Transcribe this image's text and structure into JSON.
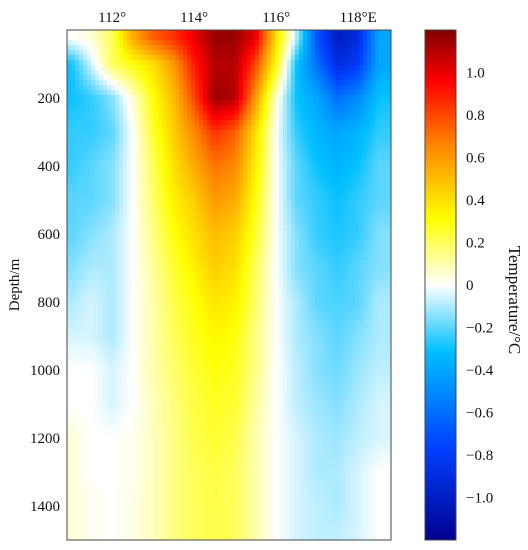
{
  "chart_data": {
    "type": "heatmap",
    "title": "",
    "xlabel": "",
    "ylabel": "Depth/m",
    "x_axis_position": "top",
    "x_ticks": [
      {
        "value": 112,
        "label": "112°"
      },
      {
        "value": 114,
        "label": "114°"
      },
      {
        "value": 116,
        "label": "116°"
      },
      {
        "value": 118,
        "label": "118°E"
      }
    ],
    "xlim": [
      110.9,
      118.8
    ],
    "y_ticks": [
      {
        "value": 200,
        "label": "200"
      },
      {
        "value": 400,
        "label": "400"
      },
      {
        "value": 600,
        "label": "600"
      },
      {
        "value": 800,
        "label": "800"
      },
      {
        "value": 1000,
        "label": "1000"
      },
      {
        "value": 1200,
        "label": "1200"
      },
      {
        "value": 1400,
        "label": "1400"
      }
    ],
    "ylim": [
      1500,
      0
    ],
    "y_inverted": true,
    "colorbar": {
      "label": "Temperature/°C",
      "range": [
        -1.2,
        1.2
      ],
      "ticks": [
        {
          "value": 1.0,
          "label": "1.0"
        },
        {
          "value": 0.8,
          "label": "0.8"
        },
        {
          "value": 0.6,
          "label": "0.6"
        },
        {
          "value": 0.4,
          "label": "0.4"
        },
        {
          "value": 0.2,
          "label": "0.2"
        },
        {
          "value": 0,
          "label": "0"
        },
        {
          "value": -0.2,
          "label": "−0.2"
        },
        {
          "value": -0.4,
          "label": "−0.4"
        },
        {
          "value": -0.6,
          "label": "−0.6"
        },
        {
          "value": -0.8,
          "label": "−0.8"
        },
        {
          "value": -1.0,
          "label": "−1.0"
        }
      ],
      "colors": [
        "#00008f",
        "#0040ff",
        "#00bfff",
        "#ffffff",
        "#ffff00",
        "#ff8000",
        "#ff0000",
        "#800000"
      ]
    },
    "grid": false,
    "x_values": [
      111.0,
      111.5,
      112.0,
      112.5,
      113.0,
      113.5,
      114.0,
      114.5,
      115.0,
      115.5,
      116.0,
      116.5,
      117.0,
      117.5,
      118.0,
      118.5
    ],
    "depth_values": [
      25,
      100,
      200,
      300,
      400,
      500,
      600,
      700,
      800,
      900,
      1000,
      1100,
      1200,
      1300,
      1400,
      1480
    ],
    "values": [
      [
        0.0,
        0.05,
        0.2,
        0.55,
        0.75,
        0.85,
        1.0,
        1.15,
        1.15,
        1.0,
        0.4,
        -0.1,
        -0.7,
        -1.0,
        -0.9,
        -0.4
      ],
      [
        -0.3,
        -0.05,
        0.2,
        0.3,
        0.4,
        0.6,
        0.9,
        1.1,
        1.1,
        0.8,
        0.3,
        -0.3,
        -0.6,
        -0.9,
        -0.8,
        -0.4
      ],
      [
        -0.3,
        -0.25,
        -0.15,
        0.05,
        0.3,
        0.5,
        0.8,
        1.15,
        1.1,
        0.6,
        0.05,
        -0.3,
        -0.4,
        -0.6,
        -0.5,
        -0.3
      ],
      [
        -0.25,
        -0.25,
        -0.2,
        0.0,
        0.25,
        0.45,
        0.65,
        0.85,
        0.75,
        0.4,
        0.0,
        -0.25,
        -0.35,
        -0.4,
        -0.35,
        -0.25
      ],
      [
        -0.25,
        -0.2,
        -0.15,
        0.0,
        0.2,
        0.4,
        0.55,
        0.7,
        0.65,
        0.35,
        0.0,
        -0.2,
        -0.3,
        -0.35,
        -0.3,
        -0.2
      ],
      [
        -0.2,
        -0.2,
        -0.15,
        0.0,
        0.18,
        0.35,
        0.45,
        0.6,
        0.55,
        0.3,
        0.0,
        -0.2,
        -0.25,
        -0.3,
        -0.25,
        -0.2
      ],
      [
        -0.2,
        -0.15,
        -0.1,
        0.0,
        0.15,
        0.3,
        0.4,
        0.5,
        0.45,
        0.25,
        0.0,
        -0.15,
        -0.25,
        -0.28,
        -0.25,
        -0.15
      ],
      [
        -0.15,
        -0.1,
        -0.1,
        0.0,
        0.12,
        0.25,
        0.35,
        0.45,
        0.4,
        0.2,
        0.0,
        -0.15,
        -0.2,
        -0.25,
        -0.2,
        -0.15
      ],
      [
        -0.1,
        -0.05,
        -0.1,
        0.0,
        0.1,
        0.22,
        0.3,
        0.38,
        0.35,
        0.18,
        0.0,
        -0.1,
        -0.2,
        -0.22,
        -0.2,
        -0.1
      ],
      [
        -0.05,
        -0.05,
        -0.1,
        0.0,
        0.1,
        0.2,
        0.28,
        0.33,
        0.3,
        0.15,
        0.0,
        -0.1,
        -0.15,
        -0.2,
        -0.15,
        -0.1
      ],
      [
        0.0,
        0.0,
        -0.05,
        0.0,
        0.1,
        0.18,
        0.25,
        0.3,
        0.27,
        0.15,
        0.0,
        -0.08,
        -0.15,
        -0.18,
        -0.12,
        -0.08
      ],
      [
        0.0,
        0.0,
        -0.05,
        0.0,
        0.08,
        0.16,
        0.23,
        0.27,
        0.25,
        0.12,
        0.0,
        -0.08,
        -0.12,
        -0.15,
        -0.1,
        -0.05
      ],
      [
        0.05,
        0.0,
        0.0,
        0.02,
        0.08,
        0.15,
        0.22,
        0.25,
        0.22,
        0.1,
        0.0,
        -0.05,
        -0.1,
        -0.12,
        -0.08,
        -0.05
      ],
      [
        0.05,
        0.0,
        0.0,
        0.02,
        0.08,
        0.15,
        0.2,
        0.23,
        0.2,
        0.1,
        0.0,
        -0.05,
        -0.1,
        -0.1,
        -0.05,
        0.0
      ],
      [
        0.05,
        0.02,
        0.0,
        0.03,
        0.08,
        0.15,
        0.2,
        0.22,
        0.2,
        0.1,
        0.0,
        -0.05,
        -0.08,
        -0.1,
        -0.05,
        0.0
      ],
      [
        0.05,
        0.02,
        0.0,
        0.03,
        0.08,
        0.15,
        0.2,
        0.22,
        0.2,
        0.1,
        0.0,
        -0.05,
        -0.08,
        -0.08,
        -0.05,
        0.0
      ]
    ]
  }
}
